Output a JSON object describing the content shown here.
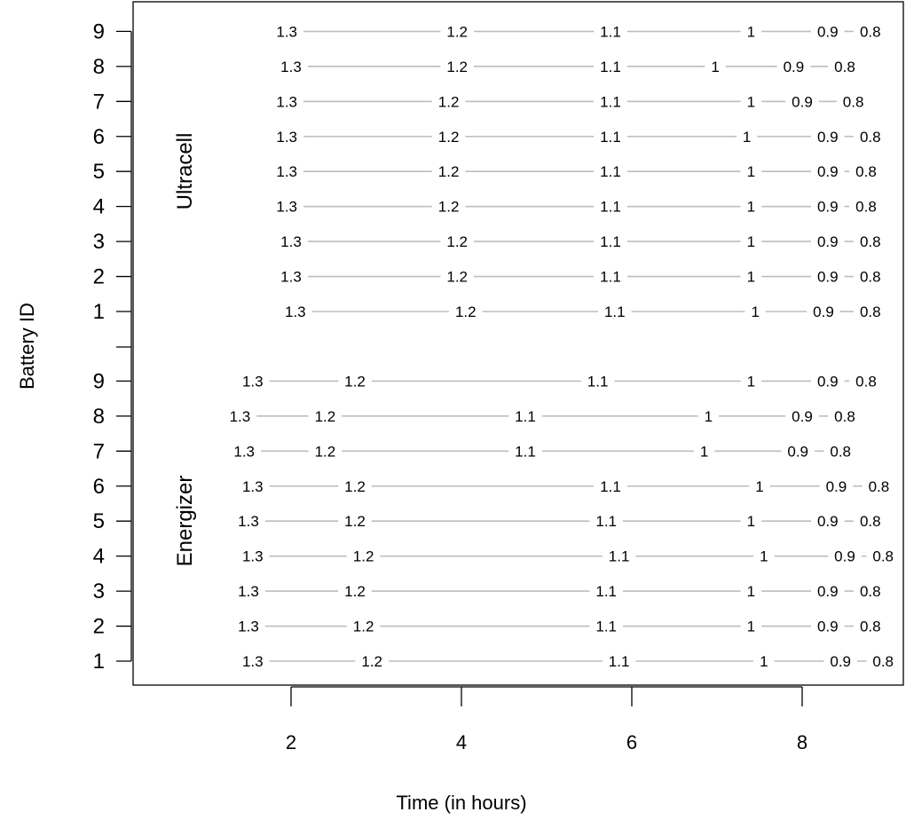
{
  "chart_data": {
    "type": "line",
    "xlabel": "Time (in hours)",
    "ylabel": "Battery ID",
    "xlim": [
      0.15,
      9.15
    ],
    "x_ticks": [
      2,
      4,
      6,
      8
    ],
    "grid": false,
    "level_labels": [
      "1.3",
      "1.2",
      "1.1",
      "1",
      "0.9",
      "0.8"
    ],
    "groups": [
      {
        "name": "Energizer",
        "battery_ids": [
          1,
          2,
          3,
          4,
          5,
          6,
          7,
          8,
          9
        ],
        "series": [
          {
            "id": "1",
            "x": [
              1.55,
              2.95,
              5.85,
              7.55,
              8.45,
              8.95
            ]
          },
          {
            "id": "2",
            "x": [
              1.5,
              2.85,
              5.7,
              7.4,
              8.3,
              8.8
            ]
          },
          {
            "id": "3",
            "x": [
              1.5,
              2.75,
              5.7,
              7.4,
              8.3,
              8.8
            ]
          },
          {
            "id": "4",
            "x": [
              1.55,
              2.85,
              5.85,
              7.55,
              8.5,
              8.95
            ]
          },
          {
            "id": "5",
            "x": [
              1.5,
              2.75,
              5.7,
              7.4,
              8.3,
              8.8
            ]
          },
          {
            "id": "6",
            "x": [
              1.55,
              2.75,
              5.75,
              7.5,
              8.4,
              8.9
            ]
          },
          {
            "id": "7",
            "x": [
              1.45,
              2.4,
              4.75,
              6.85,
              7.95,
              8.45
            ]
          },
          {
            "id": "8",
            "x": [
              1.4,
              2.4,
              4.75,
              6.9,
              8.0,
              8.5
            ]
          },
          {
            "id": "9",
            "x": [
              1.55,
              2.75,
              5.6,
              7.4,
              8.3,
              8.75
            ]
          }
        ]
      },
      {
        "name": "Ultracell",
        "battery_ids": [
          1,
          2,
          3,
          4,
          5,
          6,
          7,
          8,
          9
        ],
        "series": [
          {
            "id": "1",
            "x": [
              2.05,
              4.05,
              5.8,
              7.45,
              8.25,
              8.8
            ]
          },
          {
            "id": "2",
            "x": [
              2.0,
              3.95,
              5.75,
              7.4,
              8.3,
              8.8
            ]
          },
          {
            "id": "3",
            "x": [
              2.0,
              3.95,
              5.75,
              7.4,
              8.3,
              8.8
            ]
          },
          {
            "id": "4",
            "x": [
              1.95,
              3.85,
              5.75,
              7.4,
              8.3,
              8.75
            ]
          },
          {
            "id": "5",
            "x": [
              1.95,
              3.85,
              5.75,
              7.4,
              8.3,
              8.75
            ]
          },
          {
            "id": "6",
            "x": [
              1.95,
              3.85,
              5.75,
              7.35,
              8.3,
              8.8
            ]
          },
          {
            "id": "7",
            "x": [
              1.95,
              3.85,
              5.75,
              7.4,
              8.0,
              8.6
            ]
          },
          {
            "id": "8",
            "x": [
              2.0,
              3.95,
              5.75,
              6.98,
              7.9,
              8.5
            ]
          },
          {
            "id": "9",
            "x": [
              1.95,
              3.95,
              5.75,
              7.4,
              8.3,
              8.8
            ]
          }
        ]
      }
    ]
  }
}
